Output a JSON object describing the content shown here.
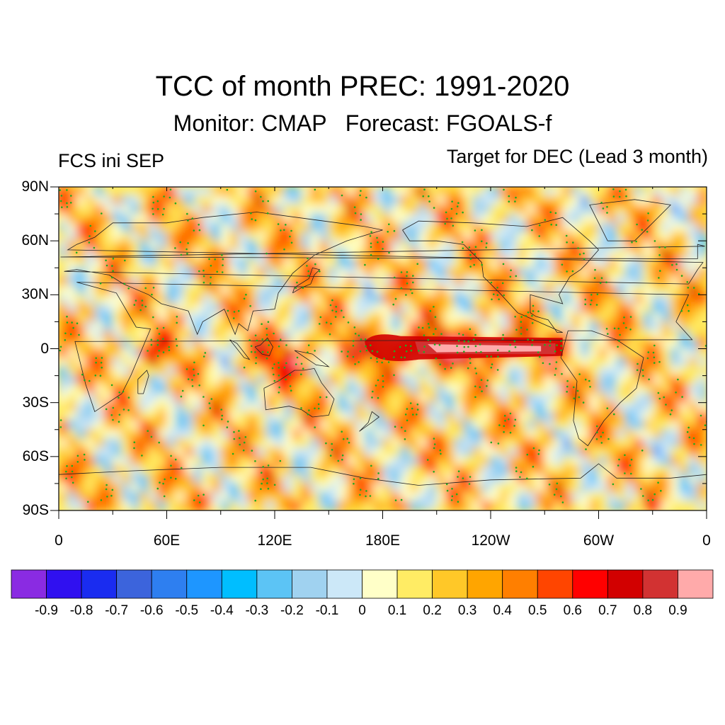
{
  "title": "TCC of month PREC: 1991-2020",
  "subtitle": "Monitor: CMAP   Forecast: FGOALS-f",
  "left_string": "FCS ini SEP",
  "right_string": "Target for DEC (Lead 3 month)",
  "map": {
    "projection": "cylindrical-equidistant",
    "lon_range": [
      0,
      360
    ],
    "lat_range": [
      -90,
      90
    ],
    "lat_labels": [
      "90N",
      "60N",
      "30N",
      "0",
      "30S",
      "60S",
      "90S"
    ],
    "lat_values": [
      90,
      60,
      30,
      0,
      -30,
      -60,
      -90
    ],
    "lon_labels": [
      "0",
      "60E",
      "120E",
      "180E",
      "120W",
      "60W",
      "0"
    ],
    "lon_values": [
      0,
      60,
      120,
      180,
      240,
      300,
      360
    ],
    "stippling": "significant correlation (green dots)",
    "stipple_color": "#22aa22"
  },
  "colorbar": {
    "labels": [
      "-0.9",
      "-0.8",
      "-0.7",
      "-0.6",
      "-0.5",
      "-0.4",
      "-0.3",
      "-0.2",
      "-0.1",
      "0",
      "0.1",
      "0.2",
      "0.3",
      "0.4",
      "0.5",
      "0.6",
      "0.7",
      "0.8",
      "0.9"
    ],
    "colors": [
      "#8a2be2",
      "#3010f0",
      "#1a2cf0",
      "#3c64dc",
      "#2e7ff0",
      "#1e96ff",
      "#00beff",
      "#5cc4f5",
      "#a0d2f0",
      "#cce8f8",
      "#ffffc8",
      "#ffec64",
      "#ffc828",
      "#ffa500",
      "#ff7f00",
      "#ff4500",
      "#ff0000",
      "#d20000",
      "#d23232",
      "#ffaaaa"
    ]
  }
}
